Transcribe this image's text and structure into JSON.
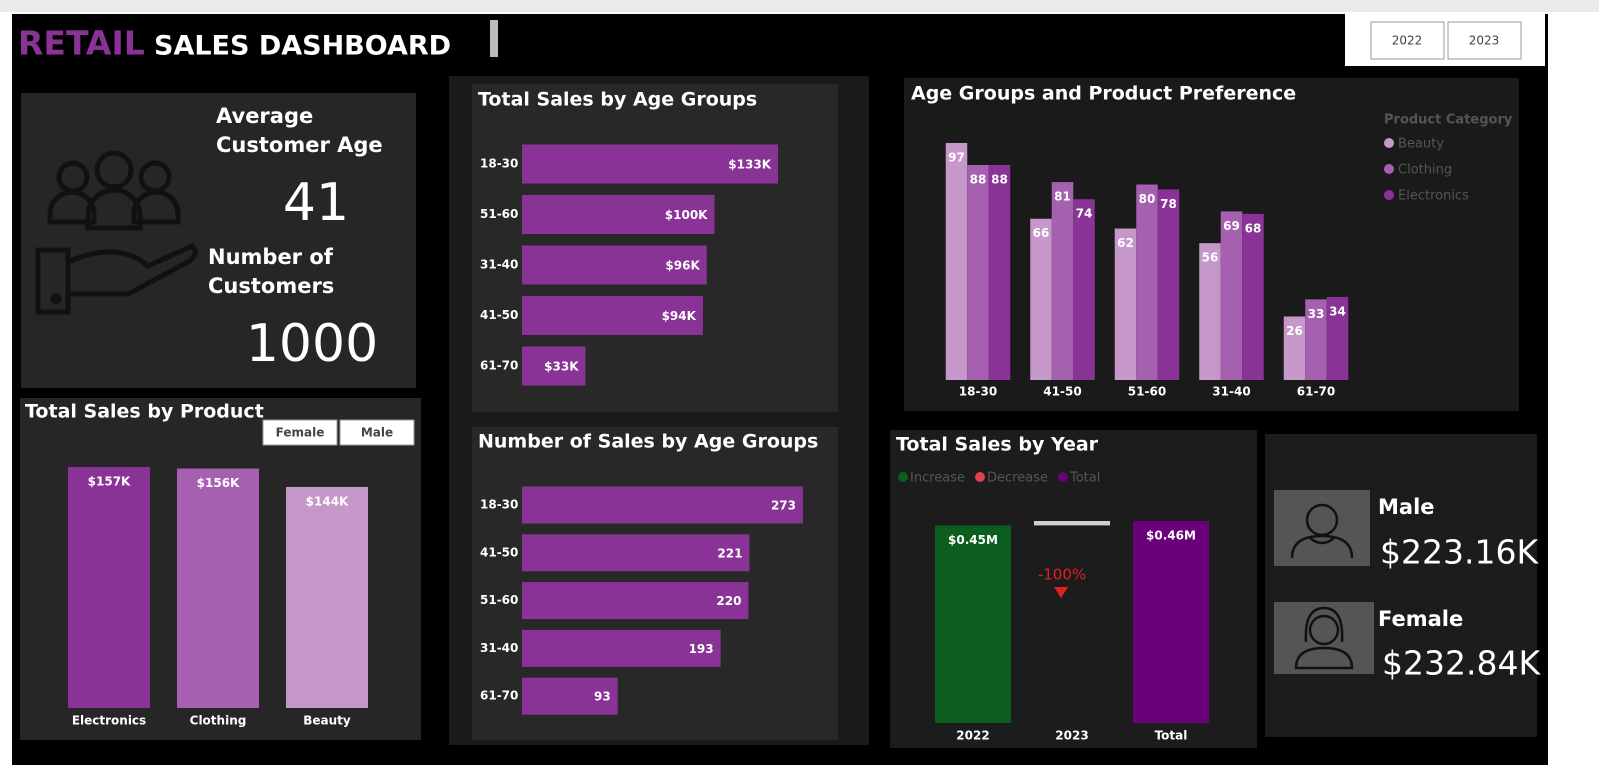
{
  "header": {
    "title_accent": "RETAIL",
    "title": "SALES DASHBOARD",
    "year_filter": [
      "2022",
      "2023"
    ]
  },
  "kpis": {
    "average_age_label": "Average Customer Age",
    "average_age": 41,
    "customers_label": "Number of Customers",
    "customers": 1000
  },
  "gender_sales": [
    {
      "label": "Male",
      "value": "$223.16K"
    },
    {
      "label": "Female",
      "value": "$232.84K"
    }
  ],
  "chart_data": [
    {
      "type": "bar",
      "title": "Total Sales by Product",
      "filter_buttons": [
        "Female",
        "Male"
      ],
      "categories": [
        "Electronics",
        "Clothing",
        "Beauty"
      ],
      "values": [
        157,
        156,
        144
      ],
      "value_labels": [
        "$157K",
        "$156K",
        "$144K"
      ],
      "colors": [
        "#8a3396",
        "#a660b0",
        "#c697c9"
      ]
    },
    {
      "type": "hbar",
      "title": "Total Sales by Age Groups",
      "categories": [
        "18-30",
        "51-60",
        "31-40",
        "41-50",
        "61-70"
      ],
      "values": [
        133,
        100,
        96,
        94,
        33
      ],
      "value_labels": [
        "$133K",
        "$100K",
        "$96K",
        "$94K",
        "$33K"
      ],
      "color": "#8a3396"
    },
    {
      "type": "hbar",
      "title": "Number of Sales by Age Groups",
      "categories": [
        "18-30",
        "41-50",
        "51-60",
        "31-40",
        "61-70"
      ],
      "values": [
        273,
        221,
        220,
        193,
        93
      ],
      "color": "#8a3396"
    },
    {
      "type": "grouped_bar",
      "title": "Age Groups and Product Preference",
      "legend_title": "Product Category",
      "categories": [
        "18-30",
        "41-50",
        "51-60",
        "31-40",
        "61-70"
      ],
      "series": [
        {
          "name": "Beauty",
          "color": "#c697c9",
          "values": [
            97,
            66,
            62,
            56,
            26
          ]
        },
        {
          "name": "Clothing",
          "color": "#a660b0",
          "values": [
            88,
            81,
            80,
            69,
            33
          ]
        },
        {
          "name": "Electronics",
          "color": "#8a3396",
          "values": [
            88,
            74,
            78,
            68,
            34
          ]
        }
      ]
    },
    {
      "type": "waterfall",
      "title": "Total Sales by Year",
      "legend": [
        {
          "name": "Increase",
          "color": "#0b5e1d"
        },
        {
          "name": "Decrease",
          "color": "#e0404e"
        },
        {
          "name": "Total",
          "color": "#6a007a"
        }
      ],
      "categories": [
        "2022",
        "2023",
        "Total"
      ],
      "values": [
        0.45,
        0.01,
        0.46
      ],
      "value_labels": [
        "$0.45M",
        null,
        "$0.46M"
      ],
      "annotation": "-100%"
    }
  ]
}
